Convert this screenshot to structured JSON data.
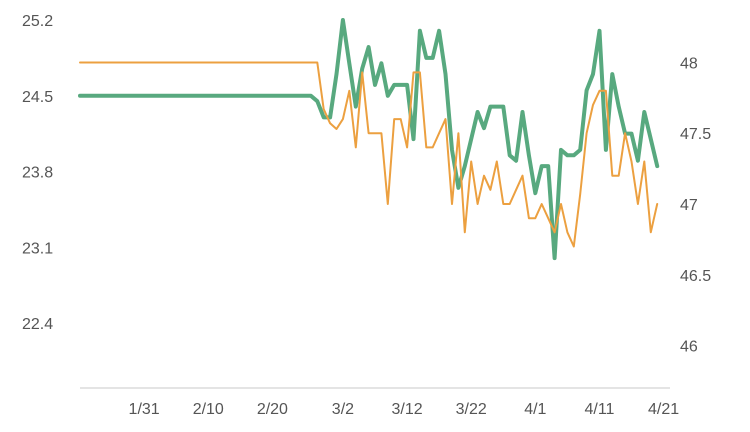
{
  "chart_data": {
    "type": "line",
    "x_ticks": [
      "1/31",
      "2/10",
      "2/20",
      "3/2",
      "3/12",
      "3/22",
      "4/1",
      "4/11",
      "4/21"
    ],
    "x_start": "1/21",
    "x_end": "4/22",
    "y_left": {
      "min": 21.8,
      "max": 25.2,
      "ticks": [
        "25.2",
        "24.5",
        "23.8",
        "23.1",
        "22.4"
      ]
    },
    "y_right": {
      "min": 45.7,
      "max": 48.3,
      "ticks": [
        "48",
        "47.5",
        "47",
        "46.5",
        "46"
      ]
    },
    "grid": false,
    "legend": "none",
    "series": [
      {
        "axis": "left",
        "color": "#58a97f",
        "points": [
          [
            "1/21",
            24.5
          ],
          [
            "2/26",
            24.5
          ],
          [
            "2/27",
            24.45
          ],
          [
            "2/28",
            24.3
          ],
          [
            "2/29",
            24.3
          ],
          [
            "3/1",
            24.7
          ],
          [
            "3/2",
            25.2
          ],
          [
            "3/3",
            24.8
          ],
          [
            "3/4",
            24.4
          ],
          [
            "3/5",
            24.75
          ],
          [
            "3/6",
            24.95
          ],
          [
            "3/7",
            24.6
          ],
          [
            "3/8",
            24.8
          ],
          [
            "3/9",
            24.5
          ],
          [
            "3/10",
            24.6
          ],
          [
            "3/11",
            24.6
          ],
          [
            "3/12",
            24.6
          ],
          [
            "3/13",
            24.1
          ],
          [
            "3/14",
            25.1
          ],
          [
            "3/15",
            24.85
          ],
          [
            "3/16",
            24.85
          ],
          [
            "3/17",
            25.1
          ],
          [
            "3/18",
            24.7
          ],
          [
            "3/19",
            24.0
          ],
          [
            "3/20",
            23.65
          ],
          [
            "3/21",
            23.85
          ],
          [
            "3/22",
            24.1
          ],
          [
            "3/23",
            24.35
          ],
          [
            "3/24",
            24.2
          ],
          [
            "3/25",
            24.4
          ],
          [
            "3/26",
            24.4
          ],
          [
            "3/27",
            24.4
          ],
          [
            "3/28",
            23.95
          ],
          [
            "3/29",
            23.9
          ],
          [
            "3/30",
            24.35
          ],
          [
            "3/31",
            23.95
          ],
          [
            "4/1",
            23.6
          ],
          [
            "4/2",
            23.85
          ],
          [
            "4/3",
            23.85
          ],
          [
            "4/4",
            23.0
          ],
          [
            "4/5",
            24.0
          ],
          [
            "4/6",
            23.95
          ],
          [
            "4/7",
            23.95
          ],
          [
            "4/8",
            24.0
          ],
          [
            "4/9",
            24.55
          ],
          [
            "4/10",
            24.7
          ],
          [
            "4/11",
            25.1
          ],
          [
            "4/12",
            24.0
          ],
          [
            "4/13",
            24.7
          ],
          [
            "4/14",
            24.4
          ],
          [
            "4/15",
            24.15
          ],
          [
            "4/16",
            24.15
          ],
          [
            "4/17",
            23.9
          ],
          [
            "4/18",
            24.35
          ],
          [
            "4/19",
            24.1
          ],
          [
            "4/20",
            23.85
          ]
        ]
      },
      {
        "axis": "right",
        "color": "#eca040",
        "points": [
          [
            "1/21",
            48.0
          ],
          [
            "2/27",
            48.0
          ],
          [
            "2/28",
            47.67
          ],
          [
            "2/29",
            47.57
          ],
          [
            "3/1",
            47.53
          ],
          [
            "3/2",
            47.6
          ],
          [
            "3/3",
            47.8
          ],
          [
            "3/4",
            47.4
          ],
          [
            "3/5",
            47.93
          ],
          [
            "3/6",
            47.5
          ],
          [
            "3/7",
            47.5
          ],
          [
            "3/8",
            47.5
          ],
          [
            "3/9",
            47.0
          ],
          [
            "3/10",
            47.6
          ],
          [
            "3/11",
            47.6
          ],
          [
            "3/12",
            47.4
          ],
          [
            "3/13",
            47.93
          ],
          [
            "3/14",
            47.93
          ],
          [
            "3/15",
            47.4
          ],
          [
            "3/16",
            47.4
          ],
          [
            "3/17",
            47.5
          ],
          [
            "3/18",
            47.6
          ],
          [
            "3/19",
            47.0
          ],
          [
            "3/20",
            47.5
          ],
          [
            "3/21",
            46.8
          ],
          [
            "3/22",
            47.3
          ],
          [
            "3/23",
            47.0
          ],
          [
            "3/24",
            47.2
          ],
          [
            "3/25",
            47.1
          ],
          [
            "3/26",
            47.3
          ],
          [
            "3/27",
            47.0
          ],
          [
            "3/28",
            47.0
          ],
          [
            "3/29",
            47.1
          ],
          [
            "3/30",
            47.2
          ],
          [
            "3/31",
            46.9
          ],
          [
            "4/1",
            46.9
          ],
          [
            "4/2",
            47.0
          ],
          [
            "4/3",
            46.9
          ],
          [
            "4/4",
            46.8
          ],
          [
            "4/5",
            47.0
          ],
          [
            "4/6",
            46.8
          ],
          [
            "4/7",
            46.7
          ],
          [
            "4/8",
            47.07
          ],
          [
            "4/9",
            47.5
          ],
          [
            "4/10",
            47.7
          ],
          [
            "4/11",
            47.8
          ],
          [
            "4/12",
            47.8
          ],
          [
            "4/13",
            47.2
          ],
          [
            "4/14",
            47.2
          ],
          [
            "4/15",
            47.5
          ],
          [
            "4/16",
            47.3
          ],
          [
            "4/17",
            47.0
          ],
          [
            "4/18",
            47.3
          ],
          [
            "4/19",
            46.8
          ],
          [
            "4/20",
            47.0
          ]
        ]
      }
    ]
  }
}
